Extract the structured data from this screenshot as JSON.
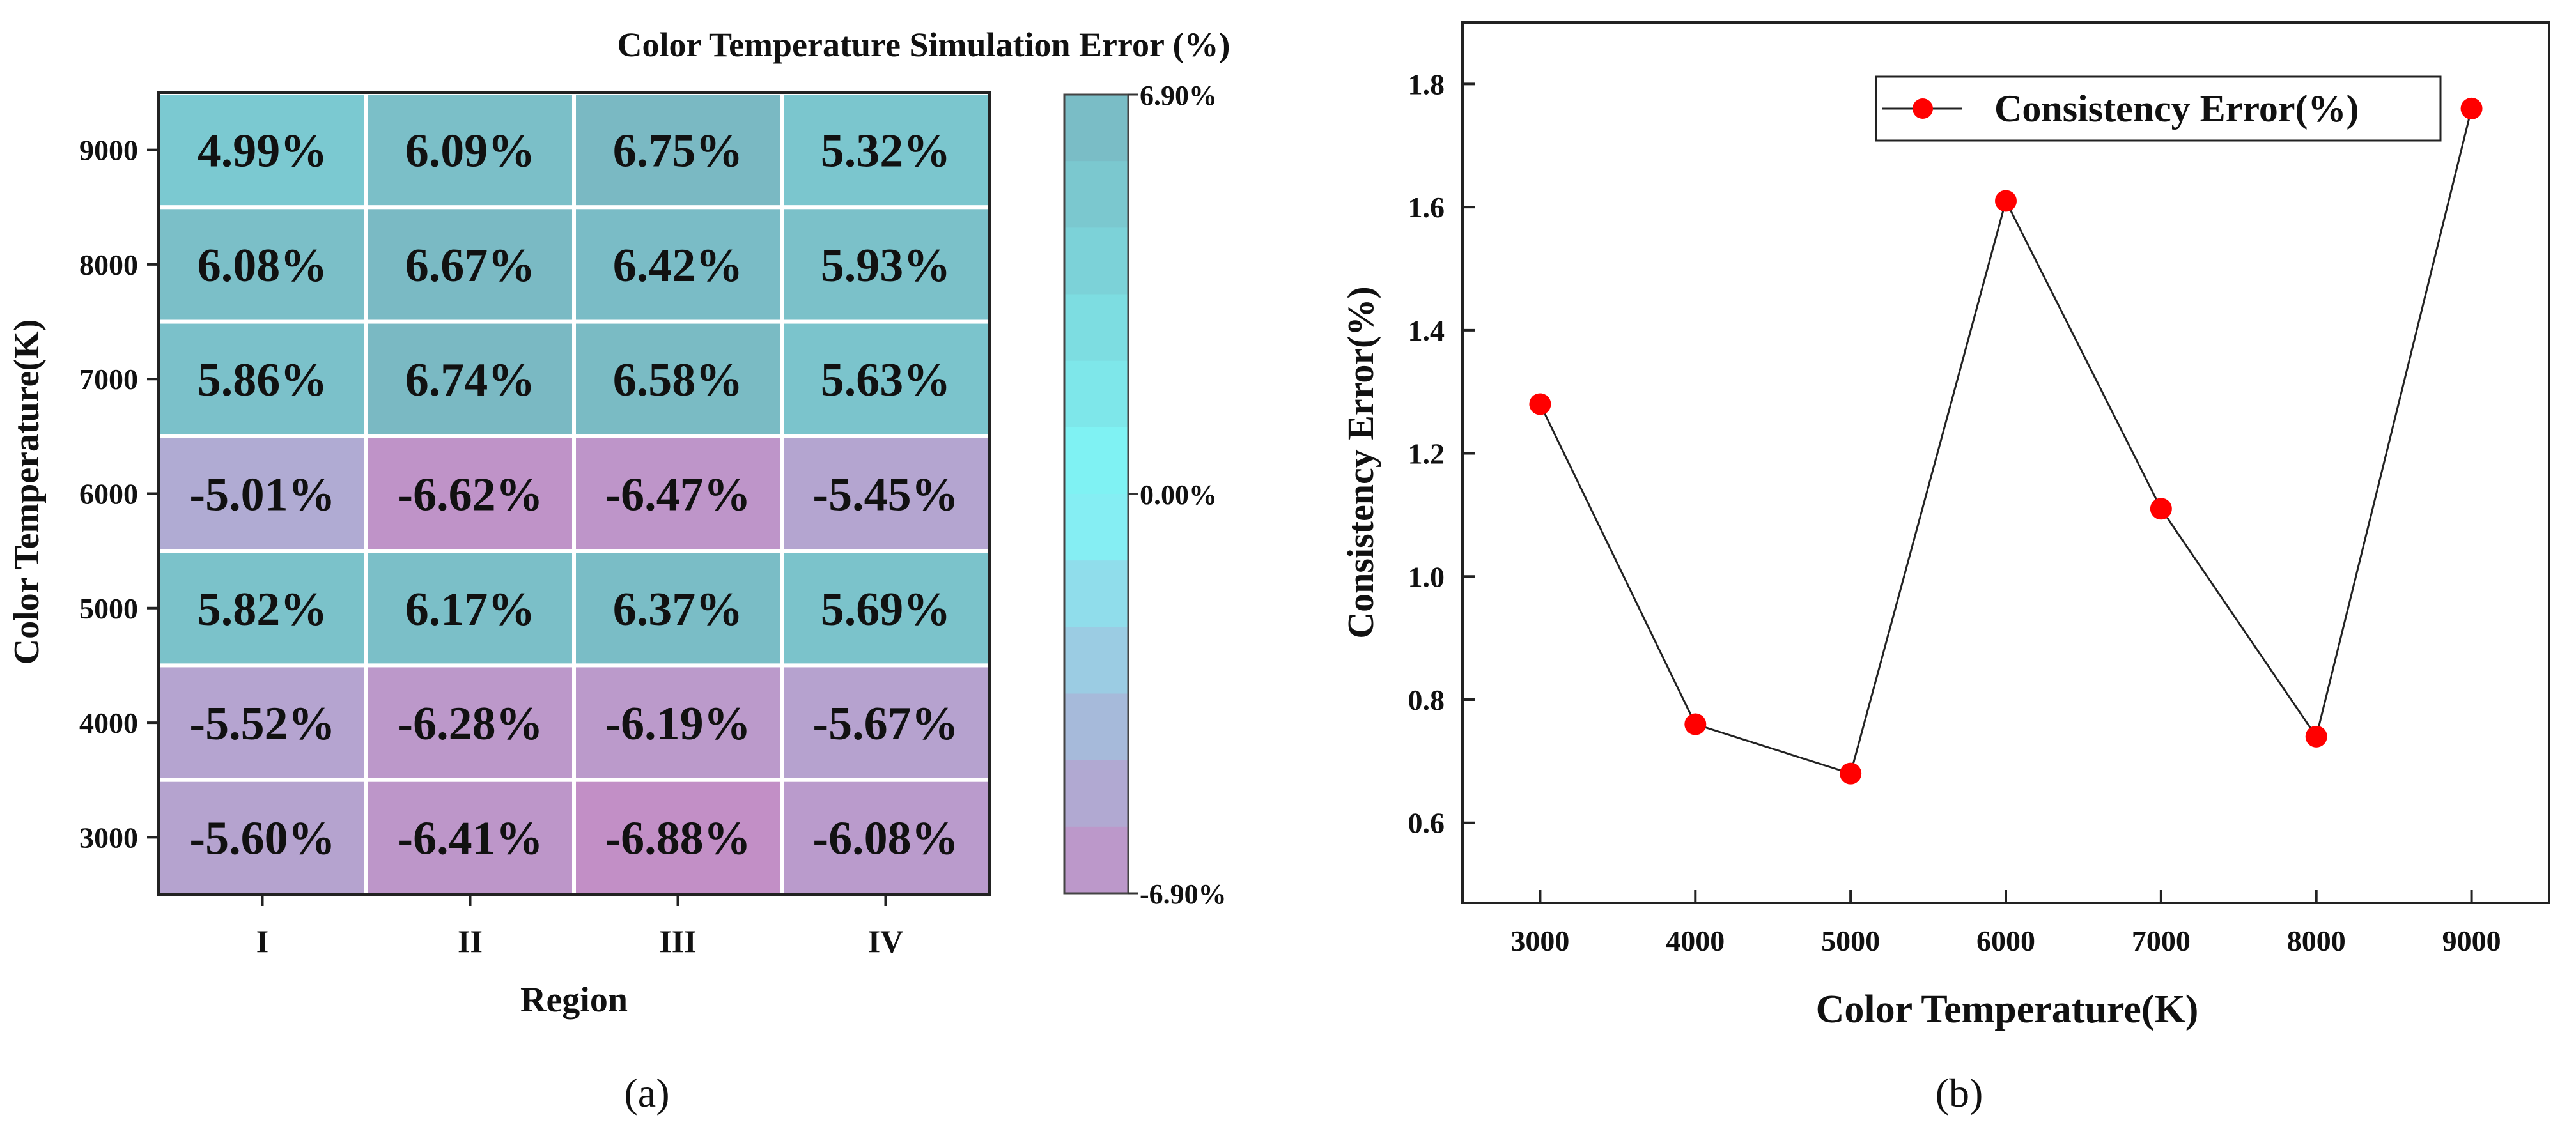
{
  "chart_data": [
    {
      "type": "heatmap",
      "panel_label": "(a)",
      "title": "Color Temperature Simulation Error (%)",
      "xlabel": "Region",
      "ylabel": "Color Temperature(K)",
      "x_categories": [
        "I",
        "II",
        "III",
        "IV"
      ],
      "y_categories": [
        "9000",
        "8000",
        "7000",
        "6000",
        "5000",
        "4000",
        "3000"
      ],
      "values": [
        [
          4.99,
          6.09,
          6.75,
          5.32
        ],
        [
          6.08,
          6.67,
          6.42,
          5.93
        ],
        [
          5.86,
          6.74,
          6.58,
          5.63
        ],
        [
          -5.01,
          -6.62,
          -6.47,
          -5.45
        ],
        [
          5.82,
          6.17,
          6.37,
          5.69
        ],
        [
          -5.52,
          -6.28,
          -6.19,
          -5.67
        ],
        [
          -5.6,
          -6.41,
          -6.88,
          -6.08
        ]
      ],
      "cell_labels": [
        [
          "4.99%",
          "6.09%",
          "6.75%",
          "5.32%"
        ],
        [
          "6.08%",
          "6.67%",
          "6.42%",
          "5.93%"
        ],
        [
          "5.86%",
          "6.74%",
          "6.58%",
          "5.63%"
        ],
        [
          "-5.01%",
          "-6.62%",
          "-6.47%",
          "-5.45%"
        ],
        [
          "5.82%",
          "6.17%",
          "6.37%",
          "5.69%"
        ],
        [
          "-5.52%",
          "-6.28%",
          "-6.19%",
          "-5.67%"
        ],
        [
          "-5.60%",
          "-6.41%",
          "-6.88%",
          "-6.08%"
        ]
      ],
      "colorbar": {
        "min": -6.9,
        "max": 6.9,
        "tick_labels": [
          "6.90%",
          "0.00%",
          "-6.90%"
        ],
        "levels": 12
      },
      "colors": {
        "pos_high": "#7ab8c2",
        "zero": "#7ff7f7",
        "neg_high": "#c28fc6"
      }
    },
    {
      "type": "line",
      "panel_label": "(b)",
      "xlabel": "Color Temperature(K)",
      "ylabel": "Consistency Error(%)",
      "legend": "Consistency Error(%)",
      "legend_position": "top-right",
      "x": [
        3000,
        4000,
        5000,
        6000,
        7000,
        8000,
        9000
      ],
      "y": [
        1.28,
        0.76,
        0.68,
        1.61,
        1.11,
        0.74,
        1.76
      ],
      "xlim": [
        2500,
        9500
      ],
      "ylim": [
        0.47,
        1.9
      ],
      "x_ticks": [
        "3000",
        "4000",
        "5000",
        "6000",
        "7000",
        "8000",
        "9000"
      ],
      "y_ticks": [
        "0.6",
        "0.8",
        "1.0",
        "1.2",
        "1.4",
        "1.6",
        "1.8"
      ],
      "y_tick_values": [
        0.6,
        0.8,
        1.0,
        1.2,
        1.4,
        1.6,
        1.8
      ],
      "colors": {
        "marker": "#ff0000",
        "line": "#222222"
      }
    }
  ]
}
